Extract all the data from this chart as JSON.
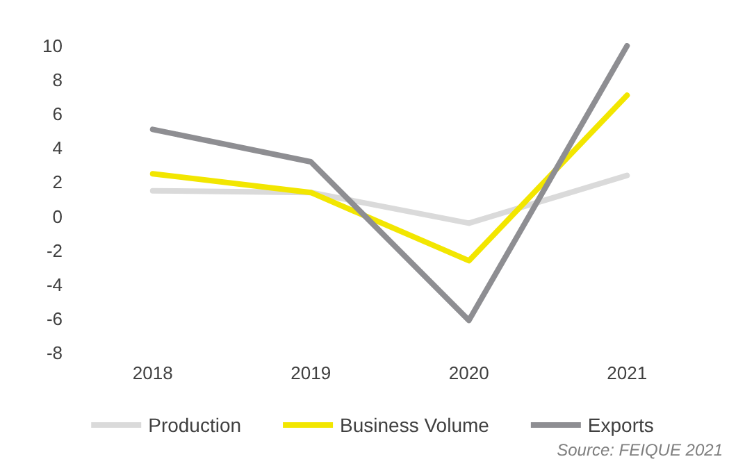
{
  "chart_data": {
    "type": "line",
    "categories": [
      "2018",
      "2019",
      "2020",
      "2021"
    ],
    "series": [
      {
        "name": "Production",
        "color": "#dadada",
        "values": [
          1.5,
          1.4,
          -0.4,
          2.4
        ]
      },
      {
        "name": "Business Volume",
        "color": "#f2e600",
        "values": [
          2.5,
          1.4,
          -2.6,
          7.1
        ]
      },
      {
        "name": "Exports",
        "color": "#8e8e92",
        "values": [
          5.1,
          3.2,
          -6.1,
          10
        ]
      }
    ],
    "ylim": [
      -8,
      10
    ],
    "yticks": [
      -8,
      -6,
      -4,
      -2,
      0,
      2,
      4,
      6,
      8,
      10
    ],
    "grid": false,
    "legend": "bottom",
    "marker": "none",
    "line_style": "solid",
    "annotations": [
      "Source: FEIQUE 2021"
    ]
  }
}
